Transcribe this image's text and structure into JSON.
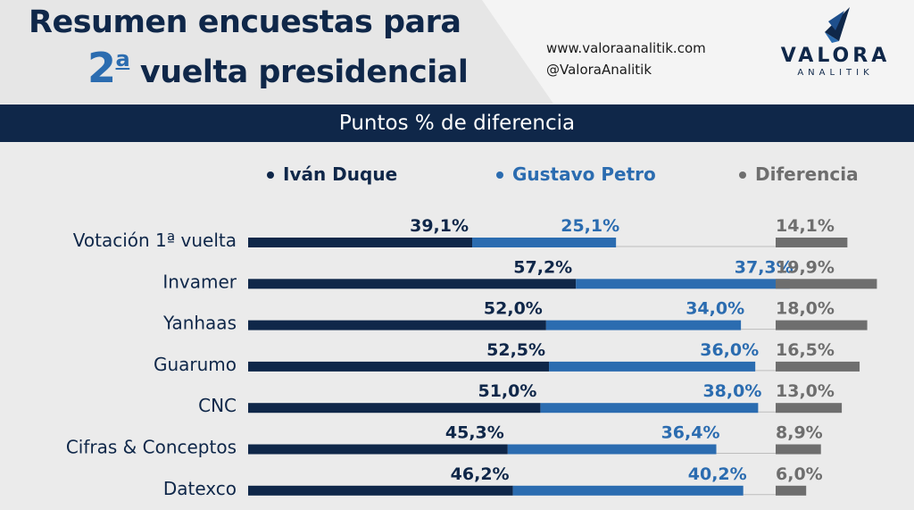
{
  "header": {
    "title_line1": "Resumen encuestas para",
    "title_number": "2",
    "title_ordinal": "a",
    "title_line2": "vuelta presidencial",
    "website": "www.valoraanalitik.com",
    "handle": "@ValoraAnalitik"
  },
  "logo": {
    "name": "VALORA",
    "sub": "ANALITIK",
    "icon": "valora-logo-icon"
  },
  "subtitle": "Puntos % de diferencia",
  "colors": {
    "duque": "#0f2749",
    "petro": "#2b6cb0",
    "diferencia": "#6e6e6e"
  },
  "chart_data": {
    "type": "bar",
    "title": "Puntos % de diferencia",
    "legend_position": "top",
    "categories": [
      "Votación 1ª vuelta",
      "Invamer",
      "Yanhaas",
      "Guarumo",
      "CNC",
      "Cifras & Conceptos",
      "Datexco"
    ],
    "series": [
      {
        "name": "Iván Duque",
        "values": [
          39.1,
          57.2,
          52.0,
          52.5,
          51.0,
          45.3,
          46.2
        ],
        "labels": [
          "39,1%",
          "57,2%",
          "52,0%",
          "52,5%",
          "51,0%",
          "45,3%",
          "46,2%"
        ]
      },
      {
        "name": "Gustavo Petro",
        "values": [
          25.1,
          37.3,
          34.0,
          36.0,
          38.0,
          36.4,
          40.2
        ],
        "labels": [
          "25,1%",
          "37,3%",
          "34,0%",
          "36,0%",
          "38,0%",
          "36,4%",
          "40,2%"
        ]
      },
      {
        "name": "Diferencia",
        "values": [
          14.1,
          19.9,
          18.0,
          16.5,
          13.0,
          8.9,
          6.0
        ],
        "labels": [
          "14,1%",
          "19,9%",
          "18,0%",
          "16,5%",
          "13,0%",
          "8,9%",
          "6,0%"
        ]
      }
    ]
  }
}
